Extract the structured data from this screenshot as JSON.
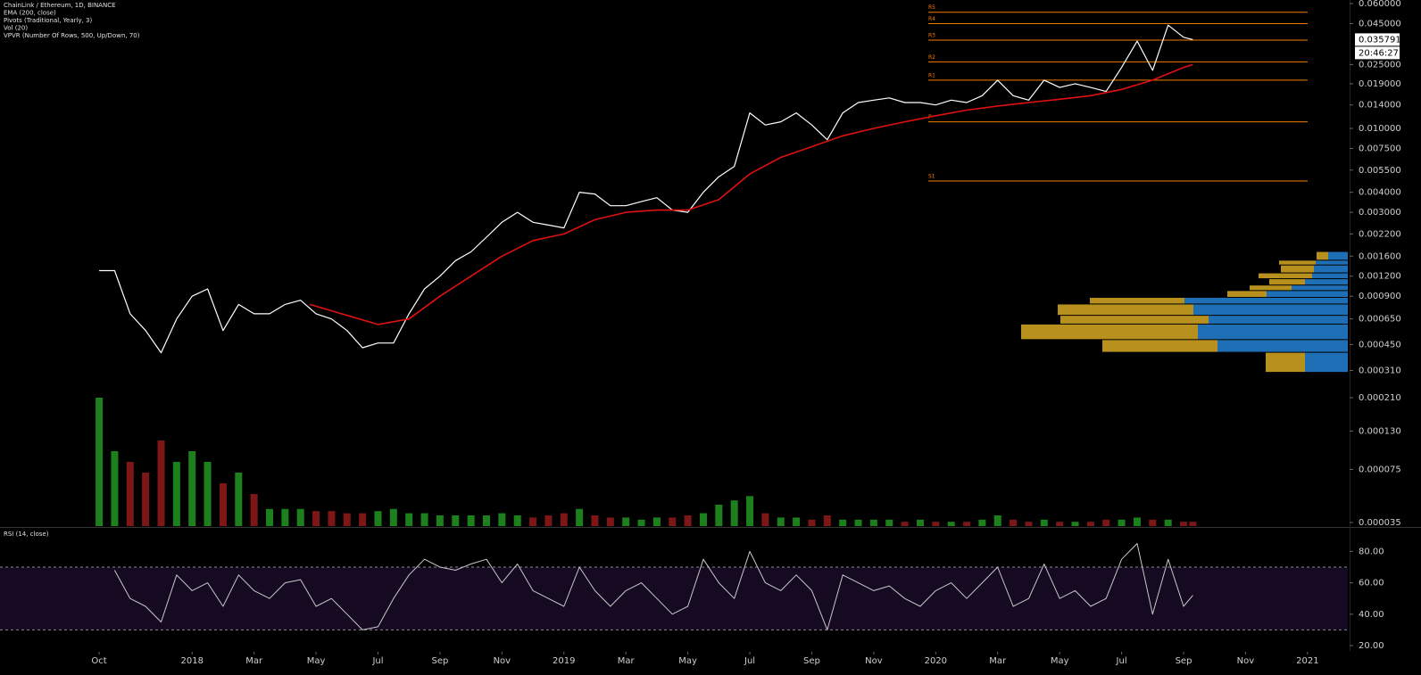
{
  "chart_data": [
    {
      "type": "line",
      "title": "ChainLink / Ethereum, 1D, BINANCE",
      "indicators": [
        "EMA (200, close)",
        "Pivots (Traditional, Yearly, 3)",
        "Vol (20)",
        "VPVR (Number Of Rows, 500, Up/Down, 70)"
      ],
      "log_scale": true,
      "xlim": [
        -3.2,
        40.3
      ],
      "ylim": [
        3.5e-05,
        0.06
      ],
      "xticks": [
        {
          "value": 0,
          "label": "Oct"
        },
        {
          "value": 3,
          "label": "2018"
        },
        {
          "value": 5,
          "label": "Mar"
        },
        {
          "value": 7,
          "label": "May"
        },
        {
          "value": 9,
          "label": "Jul"
        },
        {
          "value": 11,
          "label": "Sep"
        },
        {
          "value": 13,
          "label": "Nov"
        },
        {
          "value": 15,
          "label": "2019"
        },
        {
          "value": 17,
          "label": "Mar"
        },
        {
          "value": 19,
          "label": "May"
        },
        {
          "value": 21,
          "label": "Jul"
        },
        {
          "value": 23,
          "label": "Sep"
        },
        {
          "value": 25,
          "label": "Nov"
        },
        {
          "value": 27,
          "label": "2020"
        },
        {
          "value": 29,
          "label": "Mar"
        },
        {
          "value": 31,
          "label": "May"
        },
        {
          "value": 33,
          "label": "Jul"
        },
        {
          "value": 35,
          "label": "Sep"
        },
        {
          "value": 37,
          "label": "Nov"
        },
        {
          "value": 39,
          "label": "2021"
        }
      ],
      "yticks": [
        {
          "value": 0.06,
          "label": "0.060000"
        },
        {
          "value": 0.045,
          "label": "0.045000"
        },
        {
          "value": 0.025,
          "label": "0.025000"
        },
        {
          "value": 0.019,
          "label": "0.019000"
        },
        {
          "value": 0.014,
          "label": "0.014000"
        },
        {
          "value": 0.01,
          "label": "0.010000"
        },
        {
          "value": 0.0075,
          "label": "0.007500"
        },
        {
          "value": 0.0055,
          "label": "0.005500"
        },
        {
          "value": 0.004,
          "label": "0.004000"
        },
        {
          "value": 0.003,
          "label": "0.003000"
        },
        {
          "value": 0.0022,
          "label": "0.002200"
        },
        {
          "value": 0.0016,
          "label": "0.001600"
        },
        {
          "value": 0.0012,
          "label": "0.001200"
        },
        {
          "value": 0.0009,
          "label": "0.000900"
        },
        {
          "value": 0.00065,
          "label": "0.000650"
        },
        {
          "value": 0.00045,
          "label": "0.000450"
        },
        {
          "value": 0.00031,
          "label": "0.000310"
        },
        {
          "value": 0.00021,
          "label": "0.000210"
        },
        {
          "value": 0.00013,
          "label": "0.000130"
        },
        {
          "value": 7.5e-05,
          "label": "0.000075"
        },
        {
          "value": 3.5e-05,
          "label": "0.000035"
        }
      ],
      "last_price": 0.035791,
      "countdown": "20:46:27",
      "series": [
        {
          "color": "#ffffff",
          "x": [
            0,
            0.5,
            1,
            1.5,
            2,
            2.5,
            3,
            3.5,
            4,
            4.5,
            5,
            5.5,
            6,
            6.5,
            7,
            7.5,
            8,
            8.5,
            9,
            9.5,
            10,
            10.5,
            11,
            11.5,
            12,
            12.5,
            13,
            13.5,
            14,
            14.5,
            15,
            15.5,
            16,
            16.5,
            17,
            17.5,
            18,
            18.5,
            19,
            19.5,
            20,
            20.5,
            21,
            21.5,
            22,
            22.5,
            23,
            23.5,
            24,
            24.5,
            25,
            25.5,
            26,
            26.5,
            27,
            27.5,
            28,
            28.5,
            29,
            29.5,
            30,
            30.5,
            31,
            31.5,
            32,
            32.5,
            33,
            33.5,
            34,
            34.5,
            35,
            35.3
          ],
          "values": [
            0.0013,
            0.0013,
            0.0007,
            0.00055,
            0.0004,
            0.00065,
            0.0009,
            0.001,
            0.00055,
            0.0008,
            0.0007,
            0.0007,
            0.0008,
            0.00085,
            0.0007,
            0.00065,
            0.00055,
            0.00043,
            0.00046,
            0.00046,
            0.0007,
            0.001,
            0.0012,
            0.0015,
            0.0017,
            0.0021,
            0.0026,
            0.003,
            0.0026,
            0.0025,
            0.0024,
            0.004,
            0.0039,
            0.0033,
            0.0033,
            0.0035,
            0.0037,
            0.0031,
            0.003,
            0.004,
            0.005,
            0.0058,
            0.0125,
            0.0105,
            0.011,
            0.0125,
            0.0105,
            0.0085,
            0.0125,
            0.0145,
            0.015,
            0.0155,
            0.0145,
            0.0145,
            0.014,
            0.015,
            0.0145,
            0.016,
            0.02,
            0.016,
            0.015,
            0.02,
            0.018,
            0.019,
            0.018,
            0.017,
            0.024,
            0.035,
            0.023,
            0.044,
            0.037,
            0.035791
          ]
        },
        {
          "color": "#e01010",
          "x": [
            6.8,
            9,
            10,
            11,
            12,
            13,
            14,
            15,
            16,
            17,
            18,
            19,
            20,
            21,
            22,
            23,
            24,
            25,
            26,
            27,
            28,
            29,
            30,
            31,
            32,
            33,
            34,
            35,
            35.3
          ],
          "values": [
            0.0008,
            0.0006,
            0.00065,
            0.0009,
            0.0012,
            0.0016,
            0.002,
            0.0022,
            0.0027,
            0.003,
            0.0031,
            0.0031,
            0.0036,
            0.0052,
            0.0066,
            0.0077,
            0.009,
            0.01,
            0.011,
            0.012,
            0.013,
            0.0138,
            0.0145,
            0.0152,
            0.016,
            0.0175,
            0.02,
            0.024,
            0.025
          ]
        }
      ],
      "pivots": [
        {
          "label": "R5",
          "value": 0.053
        },
        {
          "label": "R4",
          "value": 0.045
        },
        {
          "label": "R3",
          "value": 0.0355
        },
        {
          "label": "R2",
          "value": 0.026
        },
        {
          "label": "R1",
          "value": 0.02
        },
        {
          "label": "P",
          "value": 0.011
        },
        {
          "label": "S1",
          "value": 0.0047
        }
      ],
      "pivot_color": "#f57c00",
      "volume": {
        "up_color": "#1f8f1f",
        "down_color": "#8b1a1a",
        "vlim": [
          0,
          100
        ],
        "values": [
          60,
          35,
          30,
          25,
          40,
          30,
          35,
          30,
          20,
          25,
          15,
          8,
          8,
          8,
          7,
          7,
          6,
          6,
          7,
          8,
          6,
          6,
          5,
          5,
          5,
          5,
          6,
          5,
          4,
          5,
          6,
          8,
          5,
          4,
          4,
          3,
          4,
          4,
          5,
          6,
          10,
          12,
          14,
          6,
          4,
          4,
          3,
          5,
          3,
          3,
          3,
          3,
          2,
          3,
          2,
          2,
          2,
          3,
          5,
          3,
          2,
          3,
          2,
          2,
          2,
          3,
          3,
          4,
          3,
          3,
          2,
          2
        ]
      },
      "volume_profile": {
        "up_color": "#1e6fb5",
        "down_color": "#b8901e",
        "bins": [
          0.0003,
          0.0004,
          0.00048,
          0.0006,
          0.00068,
          0.0008,
          0.00088,
          0.00097,
          0.00105,
          0.00115,
          0.00125,
          0.0014,
          0.0015,
          0.0017
        ],
        "up": [
          48,
          146,
          168,
          156,
          173,
          183,
          91,
          63,
          48,
          40,
          38,
          36,
          22
        ],
        "down": [
          44,
          129,
          198,
          166,
          152,
          106,
          44,
          47,
          40,
          60,
          37,
          41,
          13
        ]
      }
    },
    {
      "type": "line",
      "title": "RSI (14, close)",
      "color": "#c8c8c8",
      "ylim": [
        16.6,
        95
      ],
      "yticks": [
        {
          "value": 20,
          "label": "20.00"
        },
        {
          "value": 40,
          "label": "40.00"
        },
        {
          "value": 60,
          "label": "60.00"
        },
        {
          "value": 80,
          "label": "80.00"
        }
      ],
      "bands": [
        30,
        70
      ],
      "x": [
        0.5,
        1,
        1.5,
        2,
        2.5,
        3,
        3.5,
        4,
        4.5,
        5,
        5.5,
        6,
        6.5,
        7,
        7.5,
        8,
        8.5,
        9,
        9.5,
        10,
        10.5,
        11,
        11.5,
        12,
        12.5,
        13,
        13.5,
        14,
        14.5,
        15,
        15.5,
        16,
        16.5,
        17,
        17.5,
        18,
        18.5,
        19,
        19.5,
        20,
        20.5,
        21,
        21.5,
        22,
        22.5,
        23,
        23.5,
        24,
        24.5,
        25,
        25.5,
        26,
        26.5,
        27,
        27.5,
        28,
        28.5,
        29,
        29.5,
        30,
        30.5,
        31,
        31.5,
        32,
        32.5,
        33,
        33.5,
        34,
        34.5,
        35,
        35.3
      ],
      "values": [
        68,
        50,
        45,
        35,
        65,
        55,
        60,
        45,
        65,
        55,
        50,
        60,
        62,
        45,
        50,
        40,
        30,
        32,
        50,
        65,
        75,
        70,
        68,
        72,
        75,
        60,
        72,
        55,
        50,
        45,
        70,
        55,
        45,
        55,
        60,
        50,
        40,
        45,
        75,
        60,
        50,
        80,
        60,
        55,
        65,
        55,
        30,
        65,
        60,
        55,
        58,
        50,
        45,
        55,
        60,
        50,
        60,
        70,
        45,
        50,
        72,
        50,
        55,
        45,
        50,
        75,
        85,
        40,
        75,
        45,
        52
      ]
    }
  ]
}
